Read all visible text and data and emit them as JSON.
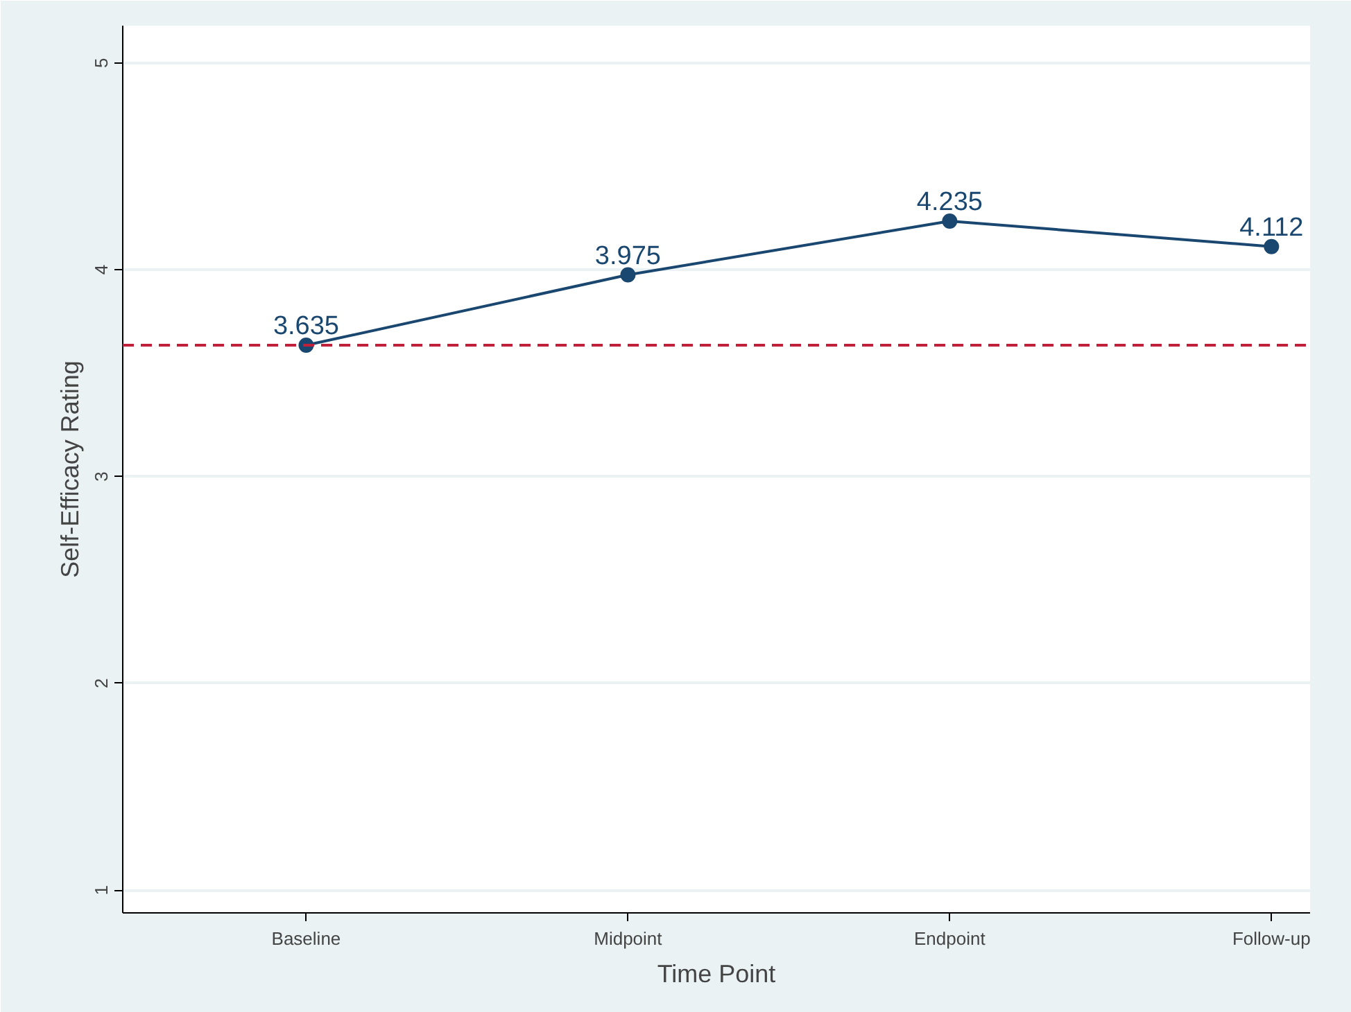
{
  "chart_data": {
    "type": "line",
    "xlabel": "Time Point",
    "ylabel": "Self-Efficacy Rating",
    "categories": [
      "Baseline",
      "Midpoint",
      "Endpoint",
      "Follow-up"
    ],
    "series": [
      {
        "color": "#1a476f",
        "values": [
          3.635,
          3.975,
          4.235,
          4.112
        ]
      }
    ],
    "ylim": [
      0.89,
      5.18
    ],
    "yticks": [
      1,
      2,
      3,
      4,
      5
    ],
    "grid": "y",
    "marker": "circle",
    "line_style": "solid",
    "data_labels": true,
    "ref_lines": [
      {
        "axis": "y",
        "value": 3.635,
        "color": "#c0203a",
        "line_style": "dashed"
      }
    ]
  }
}
